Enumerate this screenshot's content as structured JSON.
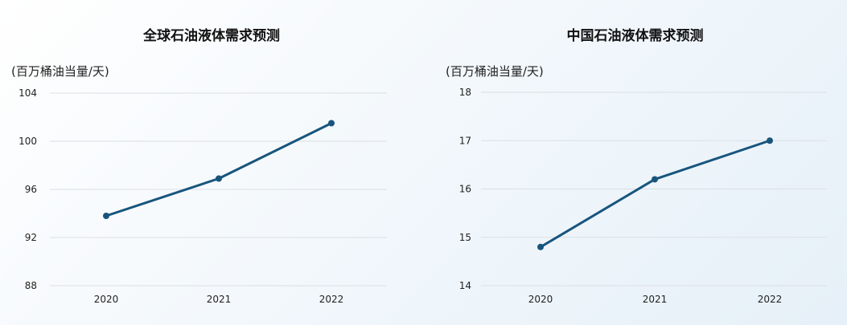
{
  "colors": {
    "line": "#17557d",
    "grid": "#dcdfe3",
    "text": "#222222"
  },
  "chart_data": [
    {
      "type": "line",
      "title": "全球石油液体需求预测",
      "ylabel": "(百万桶油当量/天)",
      "xlabel": "",
      "categories": [
        "2020",
        "2021",
        "2022"
      ],
      "values": [
        93.8,
        96.9,
        101.5
      ],
      "yticks": [
        88,
        92,
        96,
        100,
        104
      ],
      "ylim": [
        88,
        104
      ],
      "grid": true,
      "legend": "none"
    },
    {
      "type": "line",
      "title": "中国石油液体需求预测",
      "ylabel": "(百万桶油当量/天)",
      "xlabel": "",
      "categories": [
        "2020",
        "2021",
        "2022"
      ],
      "values": [
        14.8,
        16.2,
        17.0
      ],
      "yticks": [
        14,
        15,
        16,
        17,
        18
      ],
      "ylim": [
        14,
        18
      ],
      "grid": true,
      "legend": "none"
    }
  ]
}
